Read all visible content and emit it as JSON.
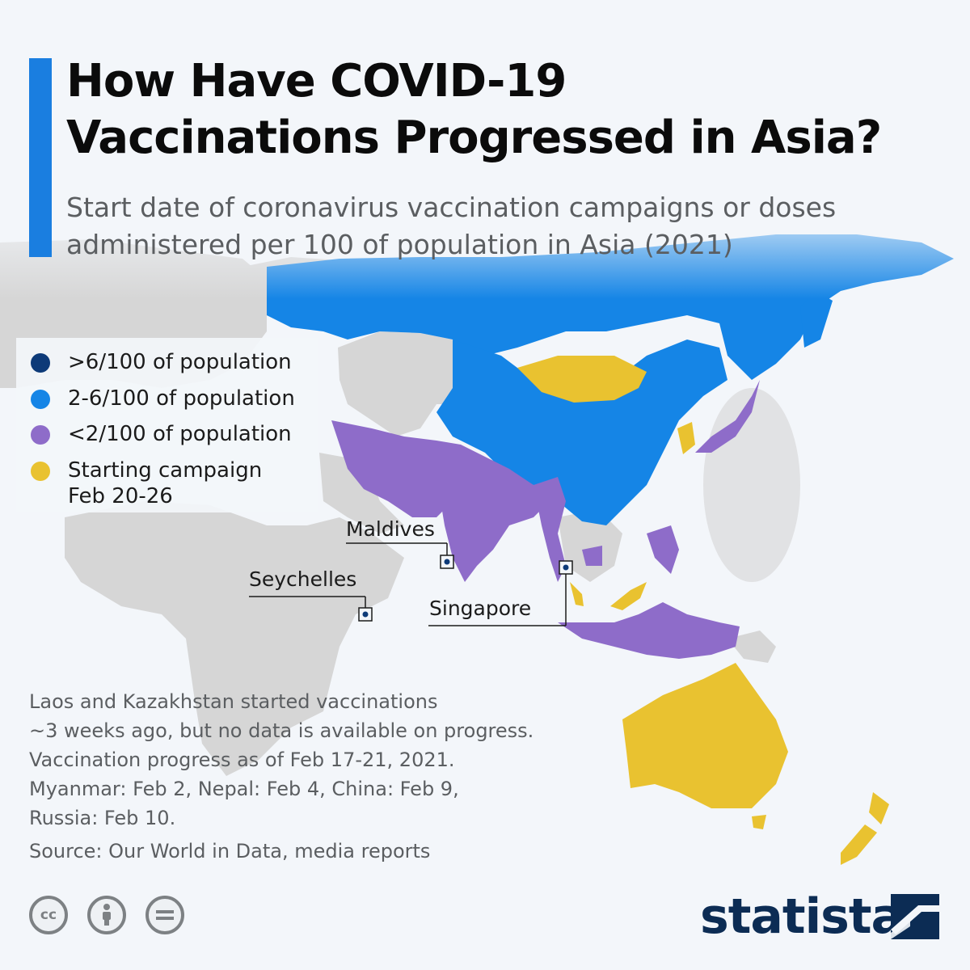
{
  "header": {
    "title_line1": "How Have COVID-19",
    "title_line2": "Vaccinations Progressed in Asia?",
    "subtitle_line1": "Start date of coronavirus vaccination campaigns or doses",
    "subtitle_line2": "administered per 100 of population in Asia (2021)"
  },
  "colors": {
    "accent": "#1a7ee0",
    "over_6": "#0d3a78",
    "between_2_6": "#1585e6",
    "under_2": "#8e6cc9",
    "starting": "#e9c230",
    "no_data": "#d6d6d6",
    "ocean": "#f3f6fa",
    "brand": "#0c2c54"
  },
  "legend": [
    {
      "label": ">6/100 of population",
      "color_key": "over_6"
    },
    {
      "label": "2-6/100 of population",
      "color_key": "between_2_6"
    },
    {
      "label": "<2/100 of population",
      "color_key": "under_2"
    },
    {
      "label": "Starting campaign",
      "label2": "Feb 20-26",
      "color_key": "starting"
    }
  ],
  "map_data": {
    "regions": [
      {
        "name": "Russia",
        "category": "between_2_6"
      },
      {
        "name": "China",
        "category": "between_2_6"
      },
      {
        "name": "Mongolia",
        "category": "starting"
      },
      {
        "name": "South Korea",
        "category": "starting"
      },
      {
        "name": "Japan",
        "category": "under_2"
      },
      {
        "name": "India",
        "category": "under_2"
      },
      {
        "name": "Iran",
        "category": "under_2"
      },
      {
        "name": "Pakistan",
        "category": "under_2"
      },
      {
        "name": "Myanmar",
        "category": "under_2"
      },
      {
        "name": "Indonesia",
        "category": "under_2"
      },
      {
        "name": "Malaysia",
        "category": "starting"
      },
      {
        "name": "Australia",
        "category": "starting"
      },
      {
        "name": "New Zealand",
        "category": "starting"
      }
    ],
    "callouts": [
      {
        "label": "Maldives",
        "category": "over_6"
      },
      {
        "label": "Seychelles",
        "category": "over_6"
      },
      {
        "label": "Singapore",
        "category": "over_6"
      }
    ]
  },
  "notes": [
    "Laos and Kazakhstan started vaccinations",
    "~3 weeks ago, but no data is available on progress.",
    "Vaccination progress as of Feb 17-21, 2021.",
    "Myanmar: Feb 2, Nepal: Feb 4, China: Feb 9,",
    "Russia: Feb 10."
  ],
  "source": "Source: Our World in Data, media reports",
  "license_icons": [
    "creative-commons-icon",
    "attribution-icon",
    "no-derivatives-icon"
  ],
  "brand": {
    "name": "statista"
  }
}
